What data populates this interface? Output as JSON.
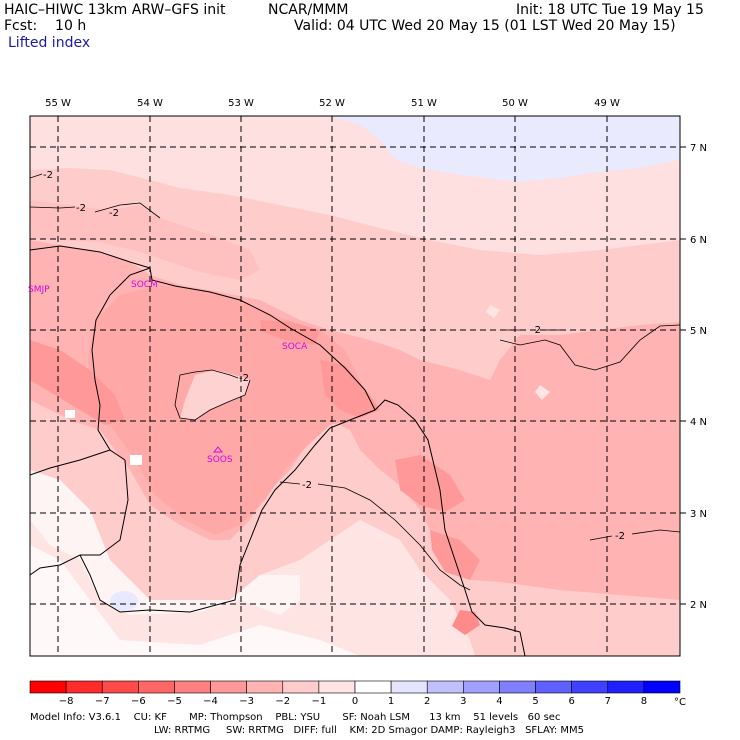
{
  "header": {
    "model": "HAIC–HIWC 13km ARW–GFS init",
    "center": "NCAR/MMM",
    "init": "Init: 18 UTC Tue 19 May 15",
    "fcst": "Fcst:    10 h",
    "valid": "Valid: 04 UTC Wed 20 May 15 (01 LST Wed 20 May 15)",
    "field": "Lifted index"
  },
  "longitudes": [
    {
      "label": "55 W",
      "value": -55
    },
    {
      "label": "54 W",
      "value": -54
    },
    {
      "label": "53 W",
      "value": -53
    },
    {
      "label": "52 W",
      "value": -52
    },
    {
      "label": "51 W",
      "value": -51
    },
    {
      "label": "50 W",
      "value": -50
    },
    {
      "label": "49 W",
      "value": -49
    }
  ],
  "latitudes": [
    {
      "label": "7 N",
      "value": 7
    },
    {
      "label": "6 N",
      "value": 6
    },
    {
      "label": "5 N",
      "value": 5
    },
    {
      "label": "4 N",
      "value": 4
    },
    {
      "label": "3 N",
      "value": 3
    },
    {
      "label": "2 N",
      "value": 2
    }
  ],
  "stations": [
    {
      "label": "SMJP"
    },
    {
      "label": "SOCM"
    },
    {
      "label": "SOCA"
    },
    {
      "label": "SOOS"
    }
  ],
  "contour_labels": [
    "-2",
    "-2",
    "-2",
    "-2",
    "-2",
    "-2",
    "-2"
  ],
  "colorbar": {
    "unit": "°C",
    "colors": [
      "#ff0000",
      "#ff2a2a",
      "#ff4a4a",
      "#ff6666",
      "#ff8080",
      "#ff9999",
      "#ffb3b3",
      "#ffcccc",
      "#ffe4e4",
      "#ffffff",
      "#e4e4ff",
      "#c0c0ff",
      "#a0a0ff",
      "#8080ff",
      "#6060ff",
      "#4040ff",
      "#2020ff",
      "#0000ff"
    ],
    "ticks": [
      "−8",
      "−7",
      "−6",
      "−5",
      "−4",
      "−3",
      "−2",
      "−1",
      "0",
      "1",
      "2",
      "3",
      "4",
      "5",
      "6",
      "7",
      "8"
    ]
  },
  "footer": {
    "line1": "Model Info: V3.6.1    CU: KF       MP: Thompson    PBL: YSU       SF: Noah LSM      13 km    51 levels   60 sec",
    "line2": "LW: RRTMG     SW: RRTMG   DIFF: full    KM: 2D Smagor DAMP: Rayleigh3   SFLAY: MM5"
  }
}
